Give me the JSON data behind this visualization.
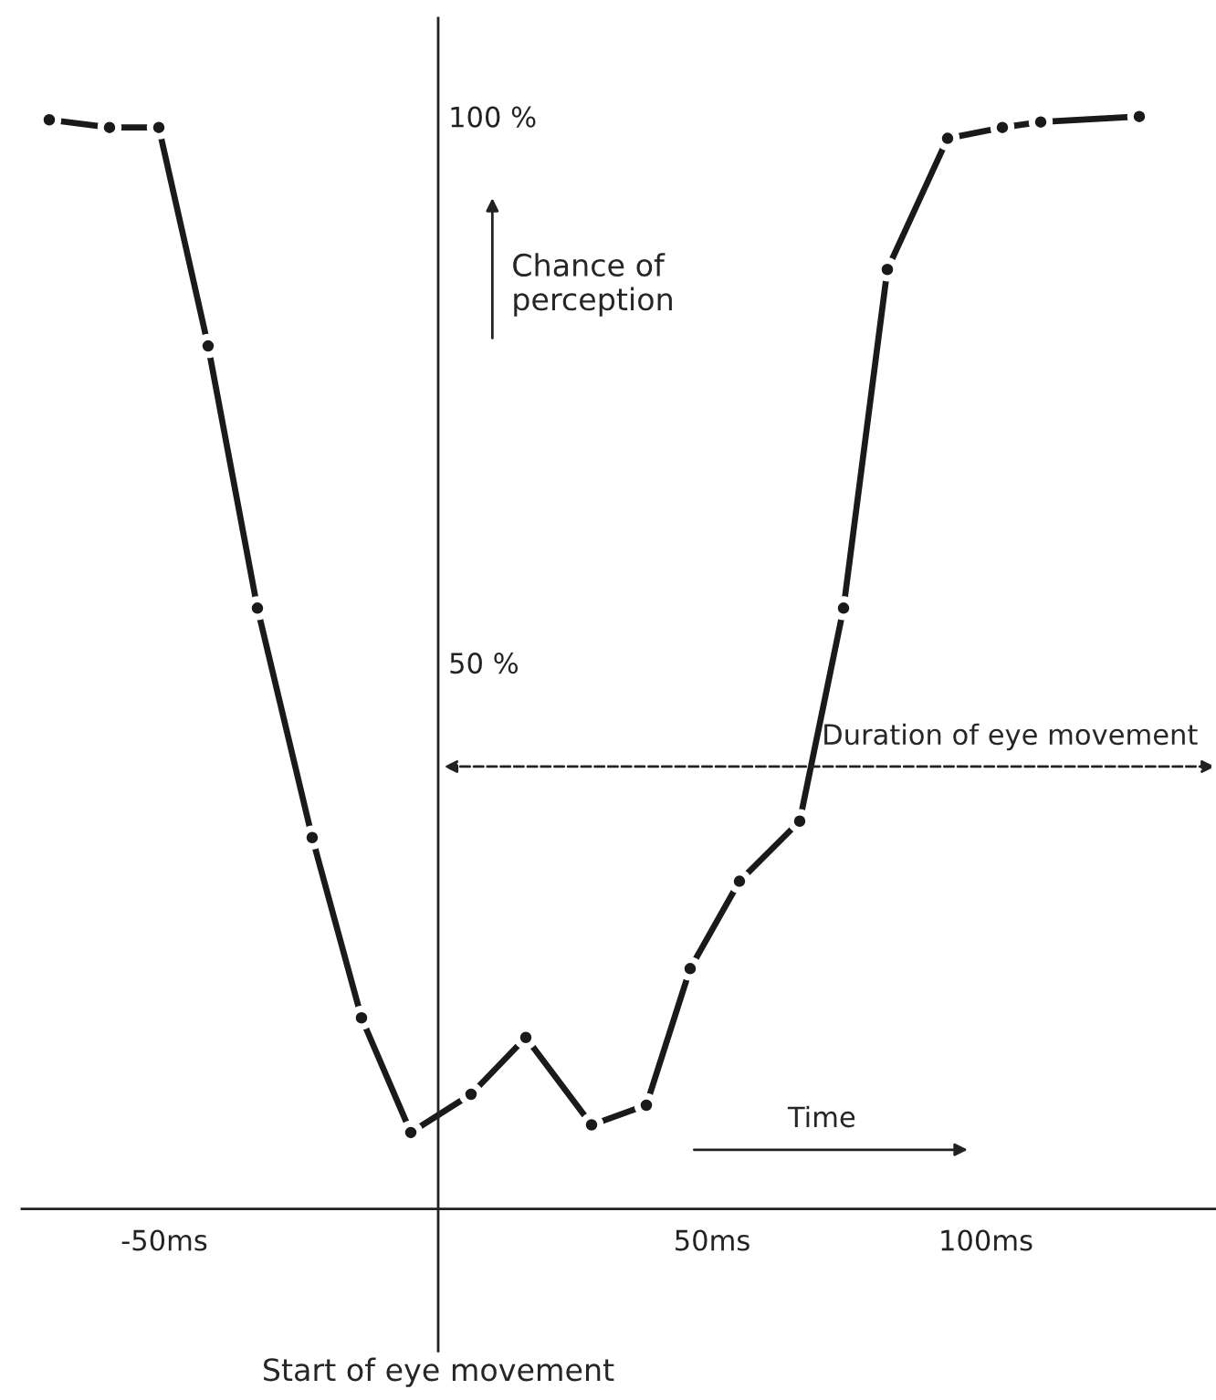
{
  "chart_data": {
    "type": "line",
    "xlabel": "Start of eye movement",
    "x": [
      -71,
      -60,
      -51,
      -42,
      -33,
      -23,
      -14,
      -5,
      6,
      16,
      28,
      38,
      46,
      55,
      66,
      74,
      82,
      93,
      103,
      110,
      128
    ],
    "series": [
      {
        "color": "#1a1a1a",
        "values": [
          99.7,
          99,
          99,
          79,
          55,
          34,
          17.5,
          7,
          10.5,
          15.7,
          7.7,
          9.5,
          22,
          30,
          35.5,
          55,
          86,
          98,
          99,
          99.5,
          100
        ]
      }
    ],
    "xlim": [
      -76,
      142
    ],
    "ylim": [
      -13,
      109
    ],
    "xticks": [
      {
        "value": -50,
        "label": "-50ms"
      },
      {
        "value": 50,
        "label": "50ms"
      },
      {
        "value": 100,
        "label": "100ms"
      }
    ],
    "yticks": [
      {
        "value": 50,
        "label": "50 %"
      },
      {
        "value": 100,
        "label": "100 %"
      }
    ],
    "annotations": [
      "Chance of\nperception",
      "Duration of eye movement",
      "Time"
    ],
    "marker": "circle",
    "line_style": "solid",
    "grid": false
  }
}
